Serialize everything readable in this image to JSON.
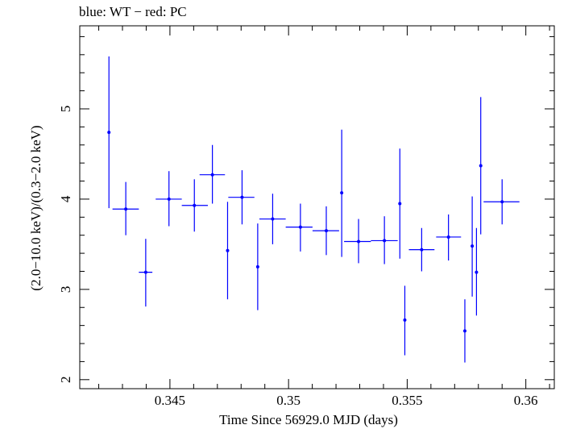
{
  "chart_data": {
    "type": "scatter",
    "title": "blue: WT − red: PC",
    "xlabel": "Time Since 56929.0 MJD (days)",
    "ylabel": "(2.0−10.0 keV)/(0.3−2.0 keV)",
    "xlim": [
      0.3412,
      0.3612
    ],
    "ylim": [
      1.9,
      5.92
    ],
    "xticks": [
      {
        "value": 0.345,
        "label": "0.345"
      },
      {
        "value": 0.35,
        "label": "0.35"
      },
      {
        "value": 0.355,
        "label": "0.355"
      },
      {
        "value": 0.36,
        "label": "0.36"
      }
    ],
    "yticks": [
      {
        "value": 2,
        "label": "2"
      },
      {
        "value": 3,
        "label": "3"
      },
      {
        "value": 4,
        "label": "4"
      },
      {
        "value": 5,
        "label": "5"
      }
    ],
    "x_minor_step": 0.001,
    "y_minor_step": 0.2,
    "grid": false,
    "series": [
      {
        "color": "#0000ff",
        "points": [
          {
            "x": 0.34243,
            "xlo": 0.34243,
            "xhi": 0.34243,
            "y": 4.74,
            "ylo": 3.9,
            "yhi": 5.58
          },
          {
            "x": 0.34314,
            "xlo": 0.34258,
            "xhi": 0.34369,
            "y": 3.89,
            "ylo": 3.6,
            "yhi": 4.19
          },
          {
            "x": 0.34398,
            "xlo": 0.34369,
            "xhi": 0.34426,
            "y": 3.19,
            "ylo": 2.81,
            "yhi": 3.56
          },
          {
            "x": 0.34496,
            "xlo": 0.3444,
            "xhi": 0.3455,
            "y": 4.0,
            "ylo": 3.7,
            "yhi": 4.31
          },
          {
            "x": 0.34603,
            "xlo": 0.3455,
            "xhi": 0.3466,
            "y": 3.93,
            "ylo": 3.64,
            "yhi": 4.22
          },
          {
            "x": 0.34679,
            "xlo": 0.34625,
            "xhi": 0.34732,
            "y": 4.27,
            "ylo": 3.95,
            "yhi": 4.6
          },
          {
            "x": 0.34743,
            "xlo": 0.34743,
            "xhi": 0.34743,
            "y": 3.43,
            "ylo": 2.89,
            "yhi": 3.97
          },
          {
            "x": 0.34804,
            "xlo": 0.34746,
            "xhi": 0.34856,
            "y": 4.02,
            "ylo": 3.72,
            "yhi": 4.32
          },
          {
            "x": 0.3487,
            "xlo": 0.3487,
            "xhi": 0.3487,
            "y": 3.25,
            "ylo": 2.77,
            "yhi": 3.73
          },
          {
            "x": 0.34933,
            "xlo": 0.34877,
            "xhi": 0.34988,
            "y": 3.78,
            "ylo": 3.5,
            "yhi": 4.06
          },
          {
            "x": 0.3505,
            "xlo": 0.34988,
            "xhi": 0.35101,
            "y": 3.69,
            "ylo": 3.42,
            "yhi": 3.95
          },
          {
            "x": 0.35159,
            "xlo": 0.35101,
            "xhi": 0.35213,
            "y": 3.65,
            "ylo": 3.38,
            "yhi": 3.92
          },
          {
            "x": 0.35224,
            "xlo": 0.35224,
            "xhi": 0.35224,
            "y": 4.07,
            "ylo": 3.36,
            "yhi": 4.77
          },
          {
            "x": 0.35295,
            "xlo": 0.35234,
            "xhi": 0.35347,
            "y": 3.53,
            "ylo": 3.29,
            "yhi": 3.78
          },
          {
            "x": 0.35404,
            "xlo": 0.35347,
            "xhi": 0.3546,
            "y": 3.54,
            "ylo": 3.28,
            "yhi": 3.81
          },
          {
            "x": 0.35469,
            "xlo": 0.35469,
            "xhi": 0.35469,
            "y": 3.95,
            "ylo": 3.34,
            "yhi": 4.56
          },
          {
            "x": 0.3549,
            "xlo": 0.3549,
            "xhi": 0.3549,
            "y": 2.66,
            "ylo": 2.27,
            "yhi": 3.04
          },
          {
            "x": 0.35561,
            "xlo": 0.35507,
            "xhi": 0.35615,
            "y": 3.44,
            "ylo": 3.2,
            "yhi": 3.68
          },
          {
            "x": 0.35674,
            "xlo": 0.35622,
            "xhi": 0.35727,
            "y": 3.58,
            "ylo": 3.32,
            "yhi": 3.83
          },
          {
            "x": 0.35743,
            "xlo": 0.35743,
            "xhi": 0.35743,
            "y": 2.54,
            "ylo": 2.19,
            "yhi": 2.89
          },
          {
            "x": 0.35774,
            "xlo": 0.35774,
            "xhi": 0.35774,
            "y": 3.48,
            "ylo": 2.92,
            "yhi": 4.03
          },
          {
            "x": 0.35792,
            "xlo": 0.35792,
            "xhi": 0.35792,
            "y": 3.19,
            "ylo": 2.71,
            "yhi": 3.68
          },
          {
            "x": 0.3581,
            "xlo": 0.3581,
            "xhi": 0.3581,
            "y": 4.37,
            "ylo": 3.61,
            "yhi": 5.13
          },
          {
            "x": 0.359,
            "xlo": 0.35822,
            "xhi": 0.35973,
            "y": 3.97,
            "ylo": 3.72,
            "yhi": 4.22
          }
        ]
      }
    ]
  }
}
